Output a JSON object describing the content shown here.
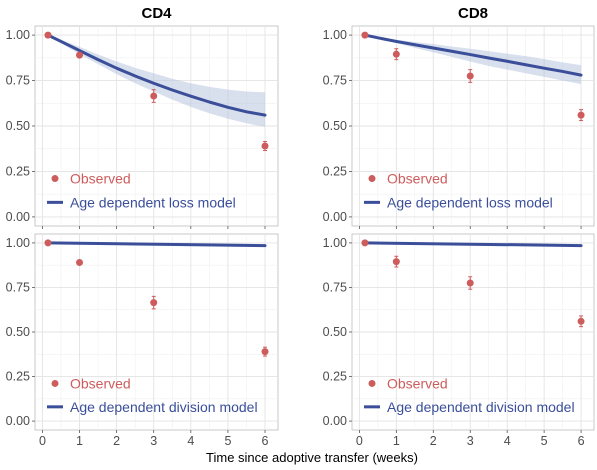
{
  "chart_data": {
    "type": "line",
    "xlabel": "Time since adoptive transfer (weeks)",
    "xlim": [
      -0.2,
      6.35
    ],
    "ylim": [
      -0.05,
      1.05
    ],
    "x_ticks": [
      0,
      1,
      2,
      3,
      4,
      5,
      6
    ],
    "y_ticks": [
      0.0,
      0.25,
      0.5,
      0.75,
      1.0
    ],
    "x_tick_labels": [
      "0",
      "1",
      "2",
      "3",
      "4",
      "5",
      "6"
    ],
    "y_tick_labels": [
      "0.00",
      "0.25",
      "0.50",
      "0.75",
      "1.00"
    ],
    "grid": true,
    "colors": {
      "observed": "#cd5c5c",
      "model": "#3a4e9a",
      "band": "#b8c4df"
    },
    "column_titles": [
      "CD4",
      "CD8"
    ],
    "panels": [
      {
        "row": 0,
        "col": 0,
        "observed": {
          "name": "Observed",
          "x": [
            0.15,
            1,
            3,
            6
          ],
          "y": [
            1.0,
            0.89,
            0.665,
            0.39
          ],
          "err": [
            0.0,
            0.012,
            0.035,
            0.025
          ]
        },
        "model": {
          "name": "Age dependent loss model",
          "x": [
            0.15,
            0.5,
            1,
            1.5,
            2,
            2.5,
            3,
            3.5,
            4,
            4.5,
            5,
            5.5,
            6
          ],
          "y": [
            1.0,
            0.965,
            0.915,
            0.865,
            0.818,
            0.775,
            0.735,
            0.698,
            0.664,
            0.632,
            0.603,
            0.578,
            0.56
          ],
          "lower": [
            1.0,
            0.955,
            0.895,
            0.84,
            0.785,
            0.735,
            0.69,
            0.645,
            0.605,
            0.57,
            0.54,
            0.515,
            0.495
          ],
          "upper": [
            1.0,
            0.975,
            0.935,
            0.893,
            0.855,
            0.82,
            0.79,
            0.76,
            0.735,
            0.715,
            0.7,
            0.69,
            0.685
          ]
        }
      },
      {
        "row": 0,
        "col": 1,
        "observed": {
          "name": "Observed",
          "x": [
            0.15,
            1,
            3,
            6
          ],
          "y": [
            1.0,
            0.895,
            0.775,
            0.56
          ],
          "err": [
            0.0,
            0.03,
            0.035,
            0.03
          ]
        },
        "model": {
          "name": "Age dependent loss model",
          "x": [
            0.15,
            0.5,
            1,
            1.5,
            2,
            2.5,
            3,
            3.5,
            4,
            4.5,
            5,
            5.5,
            6
          ],
          "y": [
            1.0,
            0.985,
            0.965,
            0.947,
            0.929,
            0.911,
            0.893,
            0.874,
            0.856,
            0.837,
            0.818,
            0.8,
            0.78
          ],
          "lower": [
            1.0,
            0.98,
            0.955,
            0.93,
            0.905,
            0.88,
            0.855,
            0.83,
            0.81,
            0.79,
            0.77,
            0.75,
            0.73
          ],
          "upper": [
            1.0,
            0.99,
            0.975,
            0.962,
            0.95,
            0.937,
            0.925,
            0.912,
            0.898,
            0.884,
            0.868,
            0.85,
            0.835
          ]
        }
      },
      {
        "row": 1,
        "col": 0,
        "observed": {
          "name": "Observed",
          "x": [
            0.15,
            1,
            3,
            6
          ],
          "y": [
            1.0,
            0.89,
            0.665,
            0.39
          ],
          "err": [
            0.0,
            0.012,
            0.035,
            0.025
          ]
        },
        "model": {
          "name": "Age dependent division model",
          "x": [
            0.15,
            6
          ],
          "y": [
            1.0,
            0.985
          ]
        }
      },
      {
        "row": 1,
        "col": 1,
        "observed": {
          "name": "Observed",
          "x": [
            0.15,
            1,
            3,
            6
          ],
          "y": [
            1.0,
            0.895,
            0.775,
            0.56
          ],
          "err": [
            0.0,
            0.03,
            0.035,
            0.03
          ]
        },
        "model": {
          "name": "Age dependent division model",
          "x": [
            0.15,
            6
          ],
          "y": [
            1.0,
            0.985
          ]
        }
      }
    ]
  }
}
